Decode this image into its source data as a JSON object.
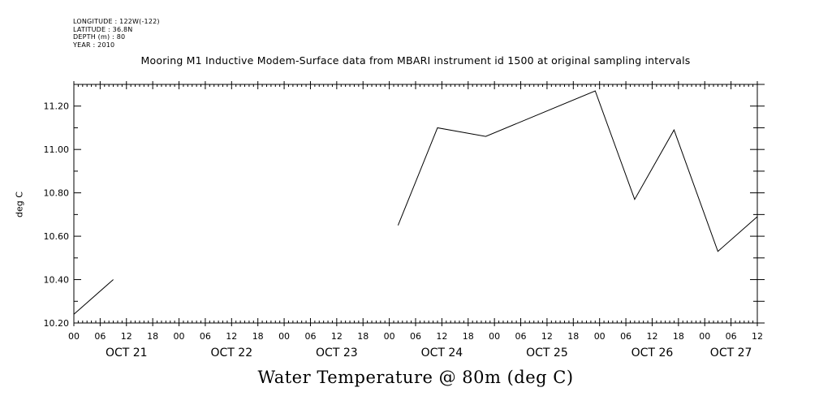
{
  "meta": {
    "longitude": "LONGITUDE : 122W(-122)",
    "latitude": "LATITUDE : 36.8N",
    "depth": "DEPTH (m) : 80",
    "year": "YEAR : 2010"
  },
  "chart_data": {
    "type": "line",
    "title": "Mooring M1 Inductive Modem-Surface data from MBARI instrument id 1500 at original sampling intervals",
    "xlabel": "Water Temperature @ 80m (deg C)",
    "ylabel": "deg C",
    "x_unit": "hours since 2010-10-21 00:00",
    "xlim": [
      0,
      156
    ],
    "ylim": [
      10.2,
      11.3
    ],
    "yticks": [
      10.2,
      10.4,
      10.6,
      10.8,
      11.0,
      11.2
    ],
    "ytick_labels": [
      "10.20",
      "10.40",
      "10.60",
      "10.80",
      "11.00",
      "11.20"
    ],
    "x_hour_labels": [
      "00",
      "06",
      "12",
      "18",
      "00",
      "06",
      "12",
      "18",
      "00",
      "06",
      "12",
      "18",
      "00",
      "06",
      "12",
      "18",
      "00",
      "06",
      "12",
      "18",
      "00",
      "06",
      "12",
      "18",
      "00",
      "06",
      "12"
    ],
    "x_day_labels": [
      {
        "label": "OCT 21",
        "hour": 12
      },
      {
        "label": "OCT 22",
        "hour": 36
      },
      {
        "label": "OCT 23",
        "hour": 60
      },
      {
        "label": "OCT 24",
        "hour": 84
      },
      {
        "label": "OCT 25",
        "hour": 108
      },
      {
        "label": "OCT 26",
        "hour": 132
      },
      {
        "label": "OCT 27",
        "hour": 150
      }
    ],
    "grid": false,
    "series": [
      {
        "segments": [
          [
            [
              0,
              10.24
            ],
            [
              9,
              10.4
            ]
          ],
          [
            [
              74,
              10.65
            ],
            [
              83,
              11.1
            ],
            [
              94,
              11.06
            ],
            [
              119,
              11.27
            ],
            [
              128,
              10.77
            ],
            [
              137,
              11.09
            ],
            [
              147,
              10.53
            ],
            [
              156,
              10.69
            ]
          ]
        ]
      }
    ]
  }
}
